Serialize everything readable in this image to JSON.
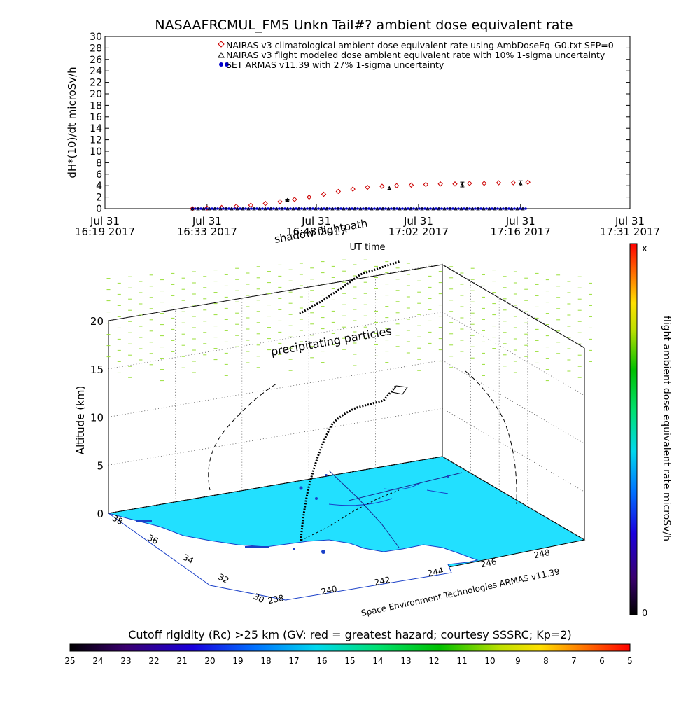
{
  "chart_data": [
    {
      "type": "scatter",
      "title": "NASAAFRCMUL_FM5 Unkn Tail#? ambient dose equivalent rate",
      "xlabel": "UT time",
      "ylabel": "dH*(10)/dt microSv/h",
      "ylim": [
        0,
        30
      ],
      "yticks": [
        0,
        2,
        4,
        6,
        8,
        10,
        12,
        14,
        16,
        18,
        20,
        22,
        24,
        26,
        28,
        30
      ],
      "xlim": [
        "16:19",
        "17:31"
      ],
      "xticks": [
        {
          "t": "16:19",
          "line1": "Jul 31",
          "line2": "16:19 2017"
        },
        {
          "t": "16:33",
          "line1": "Jul 31",
          "line2": "16:33 2017"
        },
        {
          "t": "16:48",
          "line1": "Jul 31",
          "line2": "16:48 2017"
        },
        {
          "t": "17:02",
          "line1": "Jul 31",
          "line2": "17:02 2017"
        },
        {
          "t": "17:16",
          "line1": "Jul 31",
          "line2": "17:16 2017"
        },
        {
          "t": "17:31",
          "line1": "Jul 31",
          "line2": "17:31 2017"
        }
      ],
      "legend_placement": "top-right",
      "series": [
        {
          "name": "NAIRAS v3 climatological ambient dose equivalent rate using AmbDoseEq_G0.txt SEP=0",
          "marker": "diamond",
          "color": "#cc0000",
          "x": [
            "16:31",
            "16:33",
            "16:35",
            "16:37",
            "16:39",
            "16:41",
            "16:43",
            "16:45",
            "16:47",
            "16:49",
            "16:51",
            "16:53",
            "16:55",
            "16:57",
            "16:59",
            "17:01",
            "17:03",
            "17:05",
            "17:07",
            "17:09",
            "17:11",
            "17:13",
            "17:15",
            "17:17"
          ],
          "y": [
            0.0,
            0.1,
            0.2,
            0.4,
            0.6,
            0.9,
            1.2,
            1.6,
            2.0,
            2.5,
            3.0,
            3.4,
            3.7,
            3.9,
            4.0,
            4.1,
            4.2,
            4.3,
            4.3,
            4.4,
            4.4,
            4.5,
            4.5,
            4.6
          ]
        },
        {
          "name": "NAIRAS v3 flight modeled dose ambient equivalent rate with 10% 1-sigma uncertainty",
          "marker": "triangle-errorbar",
          "color": "#000000",
          "x": [
            "16:44",
            "16:58",
            "17:08",
            "17:16"
          ],
          "y": [
            1.5,
            3.6,
            4.2,
            4.4
          ],
          "yerr": [
            0.15,
            0.36,
            0.42,
            0.44
          ]
        },
        {
          "name": "SET ARMAS v11.39 with 27% 1-sigma uncertainty",
          "marker": "dot",
          "color": "#0000cc",
          "x_range": [
            "16:31",
            "17:17"
          ],
          "y": 0.0
        }
      ]
    },
    {
      "type": "scatter",
      "labels": {
        "shadow": "shadow flightpath",
        "precip": "precipitating particles",
        "credit": "Space Environment Technologies ARMAS v11.39"
      },
      "zlabel": "Altitude (km)",
      "zticks": [
        0,
        5,
        10,
        15,
        20
      ],
      "lat_ticks": [
        38,
        36,
        34,
        32,
        30
      ],
      "lon_ticks": [
        238,
        240,
        242,
        244,
        246,
        248
      ],
      "colors": {
        "land": "#ffffff",
        "ocean": "#22e0ff",
        "precip": "#9adf3a",
        "flight": "#000000"
      }
    },
    {
      "type": "heatmap",
      "orientation": "vertical",
      "label": "flight ambient dose equivalent rate microSv/h",
      "top_label": "x",
      "bottom_label": "0"
    },
    {
      "type": "heatmap",
      "orientation": "horizontal",
      "title": "Cutoff rigidity (Rc) >25 km (GV: red = greatest hazard; courtesy SSSRC; Kp=2)",
      "ticks": [
        25,
        24,
        23,
        22,
        21,
        20,
        19,
        18,
        17,
        16,
        15,
        14,
        13,
        12,
        11,
        10,
        9,
        8,
        7,
        6,
        5
      ]
    }
  ]
}
